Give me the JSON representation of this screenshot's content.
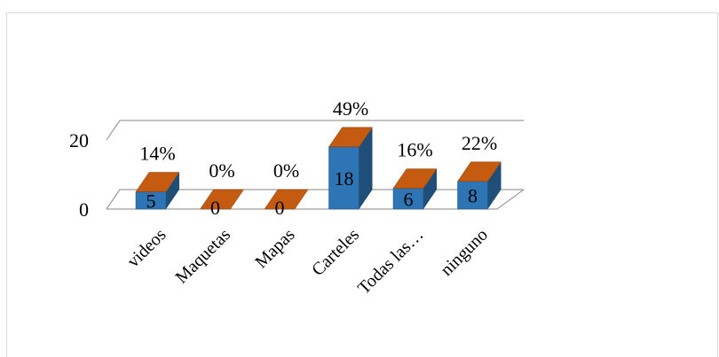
{
  "chart_data": {
    "type": "bar",
    "style": "3d-column",
    "categories": [
      "videos",
      "Maquetas",
      "Mapas",
      "Carteles",
      "Todas las…",
      "ninguno"
    ],
    "values": [
      5,
      0,
      0,
      18,
      6,
      8
    ],
    "percent_labels": [
      "14%",
      "0%",
      "0%",
      "49%",
      "16%",
      "22%"
    ],
    "y_ticks": [
      0,
      20
    ],
    "ylim": [
      0,
      20
    ],
    "grid": true,
    "legend": "none",
    "title": "",
    "xlabel": "",
    "ylabel": "",
    "colors": {
      "front": "#2e75b6",
      "side": "#1f4e79",
      "top": "#c55a11",
      "grid": "#868686"
    }
  }
}
